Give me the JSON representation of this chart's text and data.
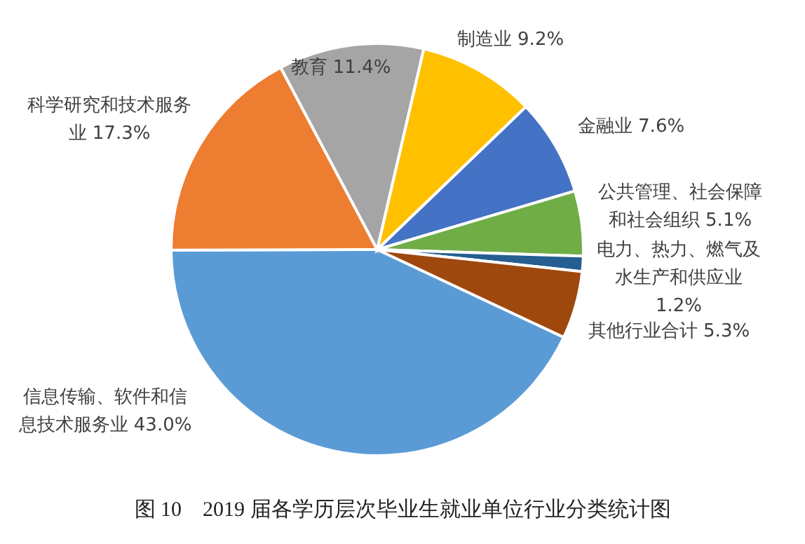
{
  "chart_data": {
    "type": "pie",
    "title": "图 10　2019 届各学历层次毕业生就业单位行业分类统计图",
    "categories": [
      "信息传输、软件和信息技术服务业",
      "科学研究和技术服务业",
      "教育",
      "制造业",
      "金融业",
      "公共管理、社会保障和社会组织",
      "电力、热力、燃气及水生产和供应业",
      "其他行业合计"
    ],
    "values": [
      43.0,
      17.3,
      11.4,
      9.2,
      7.6,
      5.1,
      1.2,
      5.3
    ],
    "value_labels": [
      "43.0%",
      "17.3%",
      "11.4%",
      "9.2%",
      "7.6%",
      "5.1%",
      "1.2%",
      "5.3%"
    ],
    "colors": [
      "#5b9bd5",
      "#ed7d31",
      "#a5a5a5",
      "#ffc000",
      "#4472c4",
      "#70ad47",
      "#255e91",
      "#9e480e"
    ],
    "legend": false
  }
}
